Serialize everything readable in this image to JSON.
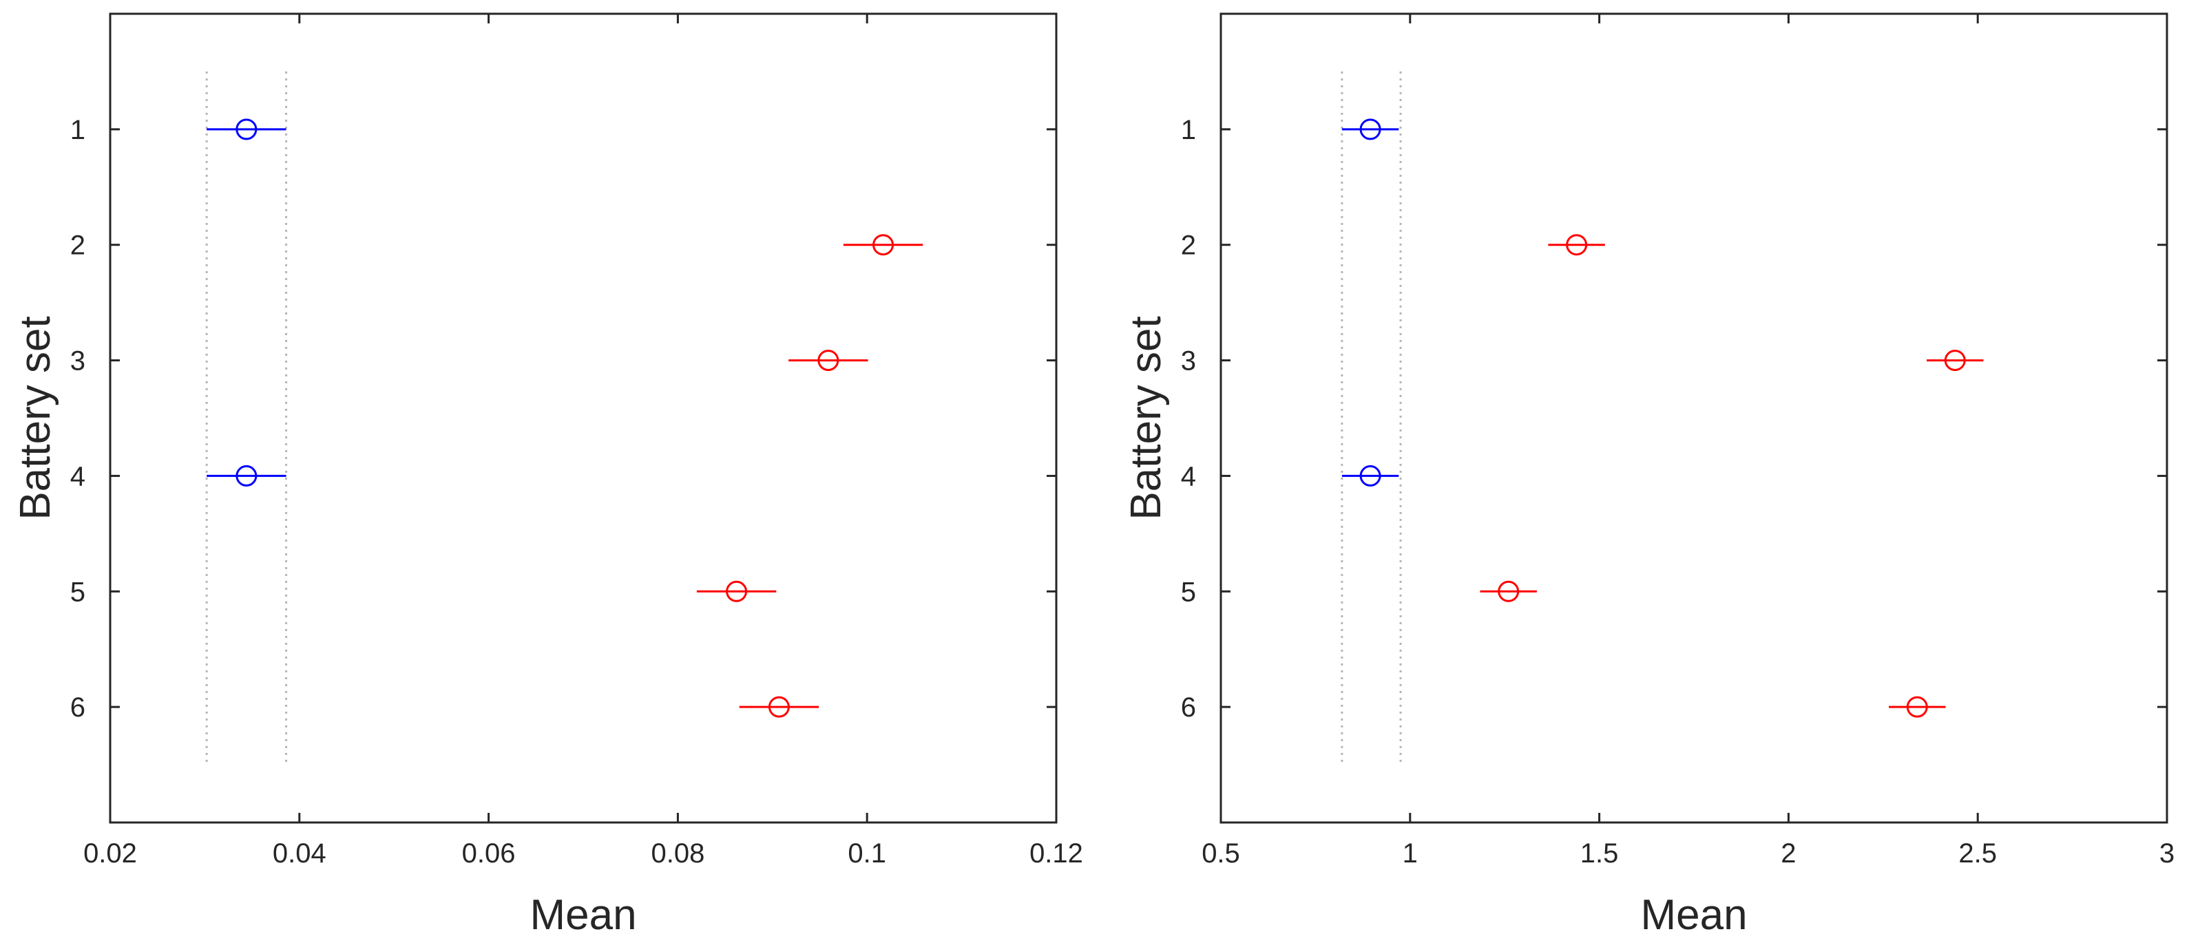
{
  "chart_data": [
    {
      "type": "scatter",
      "title": "",
      "xlabel": "Mean",
      "ylabel": "Battery set",
      "xlim": [
        0.02,
        0.12
      ],
      "ylim": [
        0,
        7
      ],
      "y_reversed": true,
      "grid": false,
      "xticks": [
        0.02,
        0.04,
        0.06,
        0.08,
        0.1,
        0.12
      ],
      "xtick_labels": [
        "0.02",
        "0.04",
        "0.06",
        "0.08",
        "0.1",
        "0.12"
      ],
      "yticks": [
        1,
        2,
        3,
        4,
        5,
        6
      ],
      "ytick_labels": [
        "1",
        "2",
        "3",
        "4",
        "5",
        "6"
      ],
      "reference_lines": {
        "x": [
          0.0302,
          0.0386
        ],
        "style": "dotted",
        "color": "#b4b4b4"
      },
      "points": [
        {
          "y": 1,
          "mean": 0.0344,
          "low": 0.0302,
          "high": 0.0386,
          "color": "#0000ff"
        },
        {
          "y": 2,
          "mean": 0.1017,
          "low": 0.0975,
          "high": 0.1059,
          "color": "#ff0000"
        },
        {
          "y": 3,
          "mean": 0.0959,
          "low": 0.0917,
          "high": 0.1001,
          "color": "#ff0000"
        },
        {
          "y": 4,
          "mean": 0.0344,
          "low": 0.0302,
          "high": 0.0386,
          "color": "#0000ff"
        },
        {
          "y": 5,
          "mean": 0.0862,
          "low": 0.082,
          "high": 0.0904,
          "color": "#ff0000"
        },
        {
          "y": 6,
          "mean": 0.0907,
          "low": 0.0865,
          "high": 0.0949,
          "color": "#ff0000"
        }
      ]
    },
    {
      "type": "scatter",
      "title": "",
      "xlabel": "Mean",
      "ylabel": "Battery set",
      "xlim": [
        0.5,
        3
      ],
      "ylim": [
        0,
        7
      ],
      "y_reversed": true,
      "grid": false,
      "xticks": [
        0.5,
        1,
        1.5,
        2,
        2.5,
        3
      ],
      "xtick_labels": [
        "0.5",
        "1",
        "1.5",
        "2",
        "2.5",
        "3"
      ],
      "yticks": [
        1,
        2,
        3,
        4,
        5,
        6
      ],
      "ytick_labels": [
        "1",
        "2",
        "3",
        "4",
        "5",
        "6"
      ],
      "reference_lines": {
        "x": [
          0.82,
          0.975
        ],
        "style": "dotted",
        "color": "#b4b4b4"
      },
      "points": [
        {
          "y": 1,
          "mean": 0.895,
          "low": 0.82,
          "high": 0.97,
          "color": "#0000ff"
        },
        {
          "y": 2,
          "mean": 1.44,
          "low": 1.365,
          "high": 1.515,
          "color": "#ff0000"
        },
        {
          "y": 3,
          "mean": 2.44,
          "low": 2.365,
          "high": 2.515,
          "color": "#ff0000"
        },
        {
          "y": 4,
          "mean": 0.895,
          "low": 0.82,
          "high": 0.97,
          "color": "#0000ff"
        },
        {
          "y": 5,
          "mean": 1.26,
          "low": 1.185,
          "high": 1.335,
          "color": "#ff0000"
        },
        {
          "y": 6,
          "mean": 2.34,
          "low": 2.265,
          "high": 2.415,
          "color": "#ff0000"
        }
      ]
    }
  ]
}
